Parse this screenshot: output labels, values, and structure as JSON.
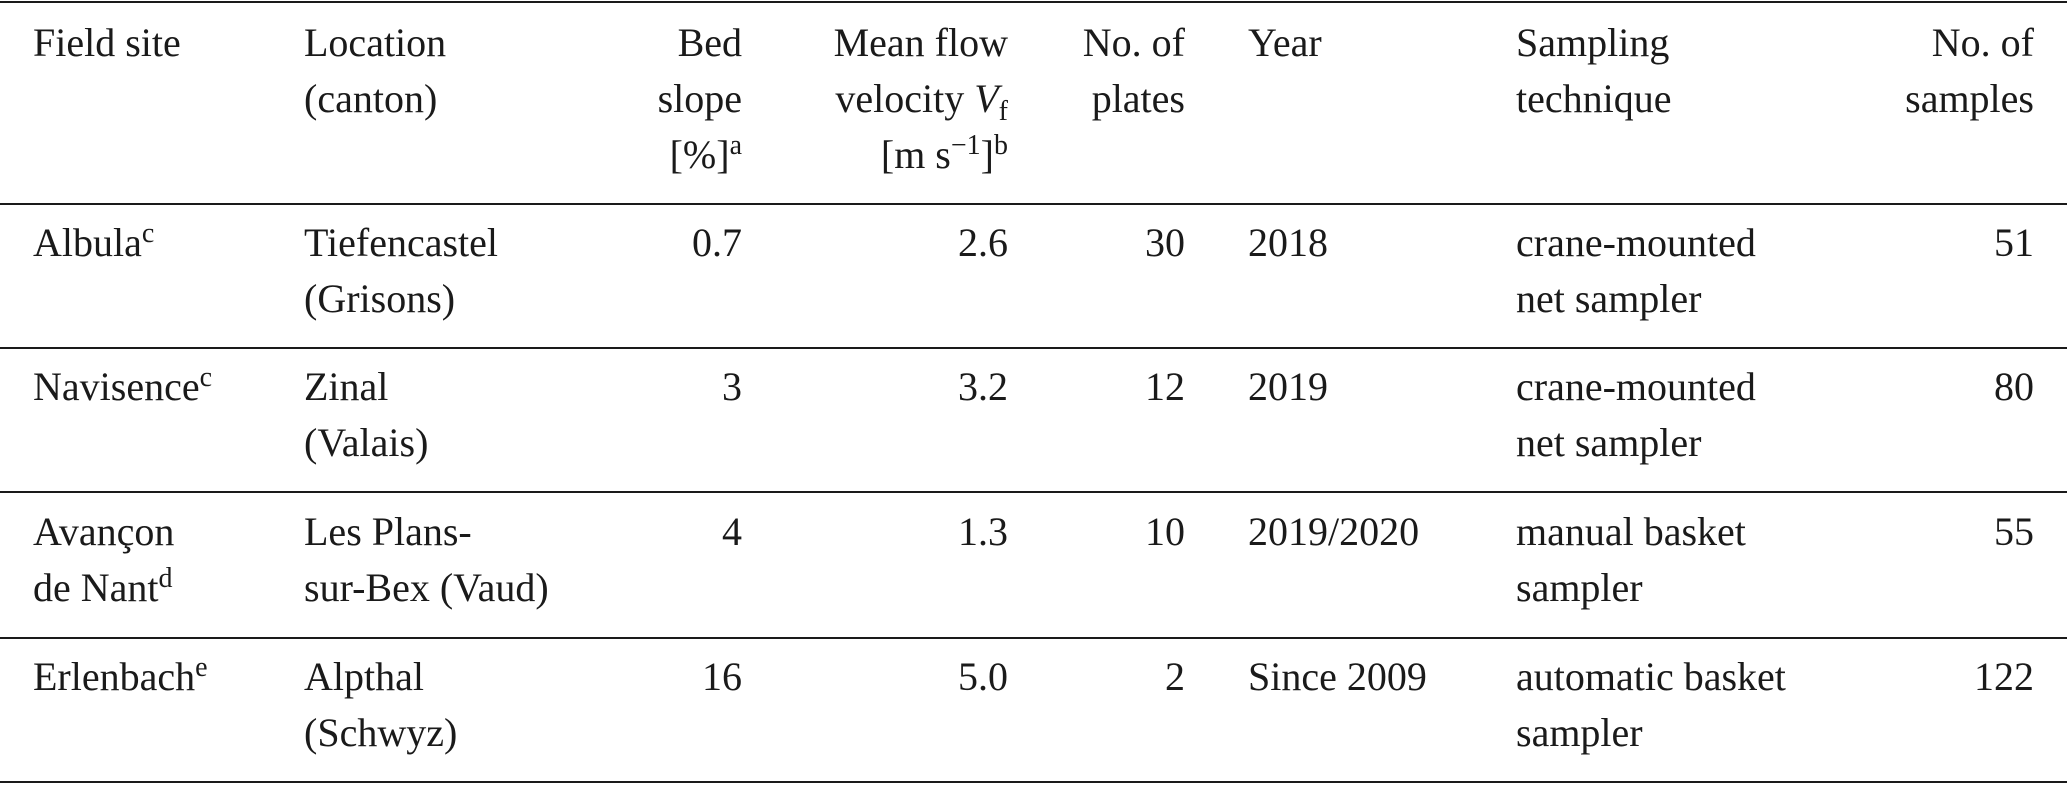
{
  "table": {
    "header": [
      [
        [
          {
            "t": "Field site"
          }
        ]
      ],
      [
        [
          {
            "t": "Location"
          }
        ],
        [
          {
            "t": "(canton)"
          }
        ]
      ],
      [
        [
          {
            "t": "Bed"
          }
        ],
        [
          {
            "t": "slope"
          }
        ],
        [
          {
            "t": "[%]"
          },
          {
            "t": "a",
            "s": "sup"
          }
        ]
      ],
      [
        [
          {
            "t": "Mean flow"
          }
        ],
        [
          {
            "t": "velocity "
          },
          {
            "t": "V",
            "s": "i"
          },
          {
            "t": "f",
            "s": "sub"
          }
        ],
        [
          {
            "t": "[m s"
          },
          {
            "t": "−1",
            "s": "sup"
          },
          {
            "t": "]"
          },
          {
            "t": "b",
            "s": "sup"
          }
        ]
      ],
      [
        [
          {
            "t": "No. of"
          }
        ],
        [
          {
            "t": "plates"
          }
        ]
      ],
      [
        [
          {
            "t": "Year"
          }
        ]
      ],
      [
        [
          {
            "t": "Sampling"
          }
        ],
        [
          {
            "t": "technique"
          }
        ]
      ],
      [
        [
          {
            "t": "No. of"
          }
        ],
        [
          {
            "t": "samples"
          }
        ]
      ]
    ],
    "rows": [
      [
        [
          [
            {
              "t": "Albula"
            },
            {
              "t": "c",
              "s": "sup"
            }
          ]
        ],
        [
          [
            {
              "t": "Tiefencastel"
            }
          ],
          [
            {
              "t": "(Grisons)"
            }
          ]
        ],
        [
          [
            {
              "t": "0.7"
            }
          ]
        ],
        [
          [
            {
              "t": "2.6"
            }
          ]
        ],
        [
          [
            {
              "t": "30"
            }
          ]
        ],
        [
          [
            {
              "t": "2018"
            }
          ]
        ],
        [
          [
            {
              "t": "crane-mounted"
            }
          ],
          [
            {
              "t": "net sampler"
            }
          ]
        ],
        [
          [
            {
              "t": "51"
            }
          ]
        ]
      ],
      [
        [
          [
            {
              "t": "Navisence"
            },
            {
              "t": "c",
              "s": "sup"
            }
          ]
        ],
        [
          [
            {
              "t": "Zinal"
            }
          ],
          [
            {
              "t": "(Valais)"
            }
          ]
        ],
        [
          [
            {
              "t": "3"
            }
          ]
        ],
        [
          [
            {
              "t": "3.2"
            }
          ]
        ],
        [
          [
            {
              "t": "12"
            }
          ]
        ],
        [
          [
            {
              "t": "2019"
            }
          ]
        ],
        [
          [
            {
              "t": "crane-mounted"
            }
          ],
          [
            {
              "t": "net sampler"
            }
          ]
        ],
        [
          [
            {
              "t": "80"
            }
          ]
        ]
      ],
      [
        [
          [
            {
              "t": "Avançon"
            }
          ],
          [
            {
              "t": "de Nant"
            },
            {
              "t": "d",
              "s": "sup"
            }
          ]
        ],
        [
          [
            {
              "t": "Les Plans-"
            }
          ],
          [
            {
              "t": "sur-Bex (Vaud)"
            }
          ]
        ],
        [
          [
            {
              "t": "4"
            }
          ]
        ],
        [
          [
            {
              "t": "1.3"
            }
          ]
        ],
        [
          [
            {
              "t": "10"
            }
          ]
        ],
        [
          [
            {
              "t": "2019/2020"
            }
          ]
        ],
        [
          [
            {
              "t": "manual basket"
            }
          ],
          [
            {
              "t": "sampler"
            }
          ]
        ],
        [
          [
            {
              "t": "55"
            }
          ]
        ]
      ],
      [
        [
          [
            {
              "t": "Erlenbach"
            },
            {
              "t": "e",
              "s": "sup"
            }
          ]
        ],
        [
          [
            {
              "t": "Alpthal"
            }
          ],
          [
            {
              "t": "(Schwyz)"
            }
          ]
        ],
        [
          [
            {
              "t": "16"
            }
          ]
        ],
        [
          [
            {
              "t": "5.0"
            }
          ]
        ],
        [
          [
            {
              "t": "2"
            }
          ]
        ],
        [
          [
            {
              "t": "Since 2009"
            }
          ]
        ],
        [
          [
            {
              "t": "automatic basket"
            }
          ],
          [
            {
              "t": "sampler"
            }
          ]
        ],
        [
          [
            {
              "t": "122"
            }
          ]
        ]
      ]
    ]
  }
}
